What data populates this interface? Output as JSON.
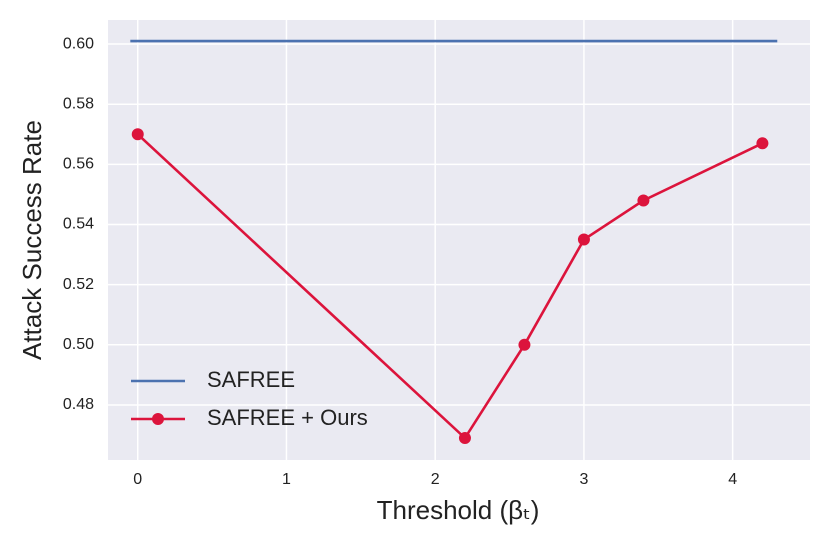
{
  "chart_data": {
    "type": "line",
    "xlabel": "Threshold (βₜ)",
    "ylabel": "Attack Success Rate",
    "xlim": [
      -0.2,
      4.52
    ],
    "ylim": [
      0.4617,
      0.608
    ],
    "xticks": [
      0,
      1,
      2,
      3,
      4
    ],
    "yticks": [
      {
        "value": 0.48,
        "label": "0.48"
      },
      {
        "value": 0.5,
        "label": "0.50"
      },
      {
        "value": 0.52,
        "label": "0.52"
      },
      {
        "value": 0.54,
        "label": "0.54"
      },
      {
        "value": 0.56,
        "label": "0.56"
      },
      {
        "value": 0.58,
        "label": "0.58"
      },
      {
        "value": 0.6,
        "label": "0.60"
      }
    ],
    "grid": true,
    "legend": "lower left",
    "series": [
      {
        "name": "SAFREE",
        "color": "#4c72b0",
        "marker": false,
        "x": [
          -0.05,
          4.3
        ],
        "values": [
          0.601,
          0.601
        ]
      },
      {
        "name": "SAFREE + Ours",
        "color": "#dc143c",
        "marker": true,
        "x": [
          0,
          2.2,
          2.6,
          3.0,
          3.4,
          4.2
        ],
        "values": [
          0.57,
          0.469,
          0.5,
          0.535,
          0.548,
          0.567
        ]
      }
    ]
  }
}
